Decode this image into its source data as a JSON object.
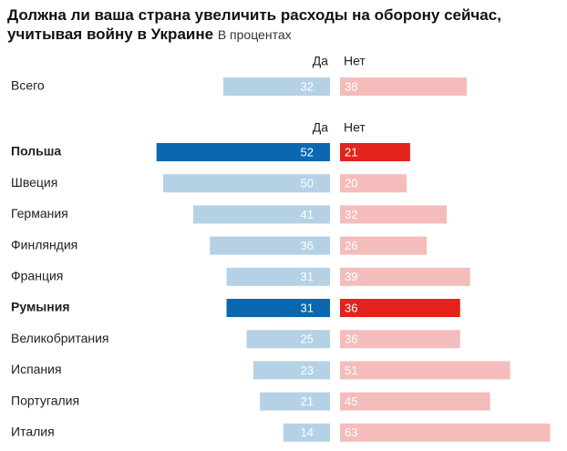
{
  "title": "Должна ли ваша страна увеличить расходы на оборону сейчас, учитывая войну в Украине",
  "subtitle": "В процентах",
  "colors": {
    "yes_light": "#b5d1e6",
    "yes_dark": "#0b68b0",
    "no_light": "#f5bcbc",
    "no_dark": "#e3231c",
    "text": "#222222"
  },
  "chart_data": {
    "type": "bar",
    "title": "Должна ли ваша страна увеличить расходы на оборону сейчас, учитывая войну в Украине",
    "subtitle": "В процентах",
    "legend": [
      "Да",
      "Нет"
    ],
    "total": {
      "label": "Всего",
      "yes": 32,
      "no": 38
    },
    "categories": [
      "Польша",
      "Швеция",
      "Германия",
      "Финляндия",
      "Франция",
      "Румыния",
      "Великобритания",
      "Испания",
      "Португалия",
      "Италия"
    ],
    "highlighted": [
      "Польша",
      "Румыния"
    ],
    "series": [
      {
        "name": "Да",
        "values": [
          52,
          50,
          41,
          36,
          31,
          31,
          25,
          23,
          21,
          14
        ]
      },
      {
        "name": "Нет",
        "values": [
          21,
          20,
          32,
          26,
          39,
          36,
          36,
          51,
          45,
          63
        ]
      }
    ]
  }
}
